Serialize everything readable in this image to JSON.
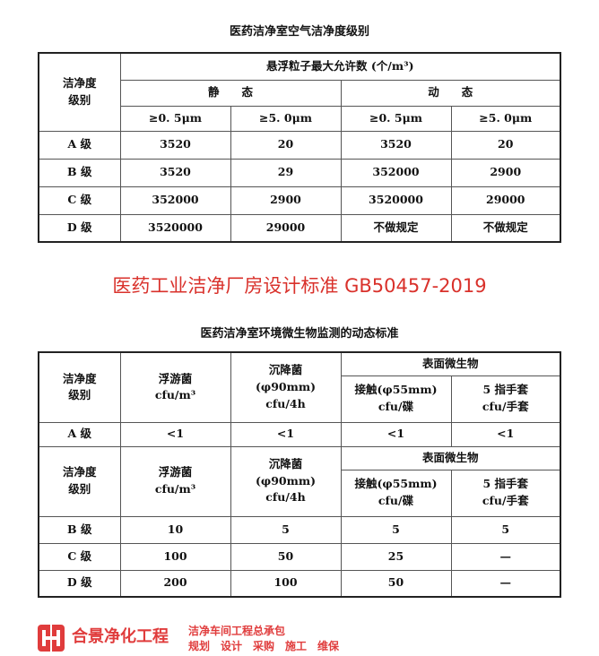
{
  "table1": {
    "title": "医药洁净室空气洁净度级别",
    "header": {
      "grade": "洁净度\n级别",
      "max": "悬浮粒子最大允许数 (个/m³)",
      "static": "静　　态",
      "dynamic": "动　　态",
      "sizes": [
        "≥0. 5μm",
        "≥5. 0μm",
        "≥0. 5μm",
        "≥5. 0μm"
      ]
    },
    "rows": [
      [
        "A 级",
        "3520",
        "20",
        "3520",
        "20"
      ],
      [
        "B 级",
        "3520",
        "29",
        "352000",
        "2900"
      ],
      [
        "C 级",
        "352000",
        "2900",
        "3520000",
        "29000"
      ],
      [
        "D 级",
        "3520000",
        "29000",
        "不做规定",
        "不做规定"
      ]
    ]
  },
  "banner": "医药工业洁净厂房设计标准 GB50457-2019",
  "table2": {
    "title": "医药洁净室环境微生物监测的动态标准",
    "header": {
      "grade": "洁净度\n级别",
      "floating": "浮游菌\ncfu/m³",
      "settling": "沉降菌\n(φ90mm)\ncfu/4h",
      "surface": "表面微生物",
      "contact": "接触(φ55mm)\ncfu/碟",
      "glove": "5 指手套\ncfu/手套"
    },
    "rows_a": [
      [
        "A 级",
        "<1",
        "<1",
        "<1",
        "<1"
      ]
    ],
    "rows_b": [
      [
        "B 级",
        "10",
        "5",
        "5",
        "5"
      ],
      [
        "C 级",
        "100",
        "50",
        "25",
        "—"
      ],
      [
        "D 级",
        "200",
        "100",
        "50",
        "—"
      ]
    ]
  },
  "watermark": {
    "name": "合景净化工程",
    "sub": "洁净车间工程总承包",
    "services": "规划　设计　采购　施工　维保",
    "brand_color": "#e03c3c"
  }
}
